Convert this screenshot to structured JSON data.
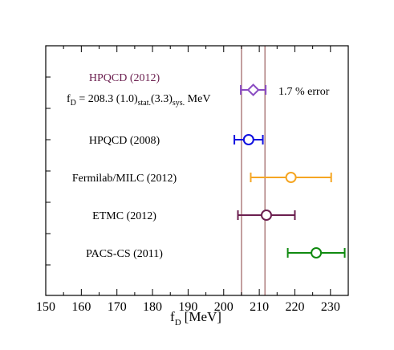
{
  "chart_data": {
    "type": "scatter",
    "title": "",
    "xlabel": {
      "main": "f",
      "sub": "D",
      "unit": "[MeV]"
    },
    "ylabel": "",
    "xlim": [
      150,
      235
    ],
    "x_ticks": [
      150,
      160,
      170,
      180,
      190,
      200,
      210,
      220,
      230
    ],
    "grid": false,
    "band": {
      "low": 205.0,
      "high": 211.6,
      "color": "#b08080"
    },
    "series": [
      {
        "label": "HPQCD (2012)",
        "value": 208.3,
        "err_low": 3.5,
        "err_high": 3.5,
        "marker": "diamond",
        "color": "#8a4cc2",
        "label_color": "#6b1f4f"
      },
      {
        "label": "HPQCD (2008)",
        "value": 207.0,
        "err_low": 4.0,
        "err_high": 4.0,
        "marker": "circle",
        "color": "#1010e0",
        "label_color": "#000000"
      },
      {
        "label": "Fermilab/MILC (2012)",
        "value": 218.9,
        "err_low": 11.3,
        "err_high": 11.3,
        "marker": "circle",
        "color": "#f5a623",
        "label_color": "#000000"
      },
      {
        "label": "ETMC (2012)",
        "value": 212.0,
        "err_low": 8.0,
        "err_high": 8.0,
        "marker": "circle",
        "color": "#6b1f4f",
        "label_color": "#000000"
      },
      {
        "label": "PACS-CS (2011)",
        "value": 226.0,
        "err_low": 8.0,
        "err_high": 8.0,
        "marker": "circle",
        "color": "#108a10",
        "label_color": "#000000"
      }
    ],
    "annotations": {
      "formula_prefix": "f",
      "formula_sub": "D",
      "formula_value": " = 208.3 (1.0)",
      "formula_stat": "stat.",
      "formula_mid": "(3.3)",
      "formula_sys": "sys.",
      "formula_unit": " MeV",
      "error_note": "1.7 % error"
    }
  }
}
